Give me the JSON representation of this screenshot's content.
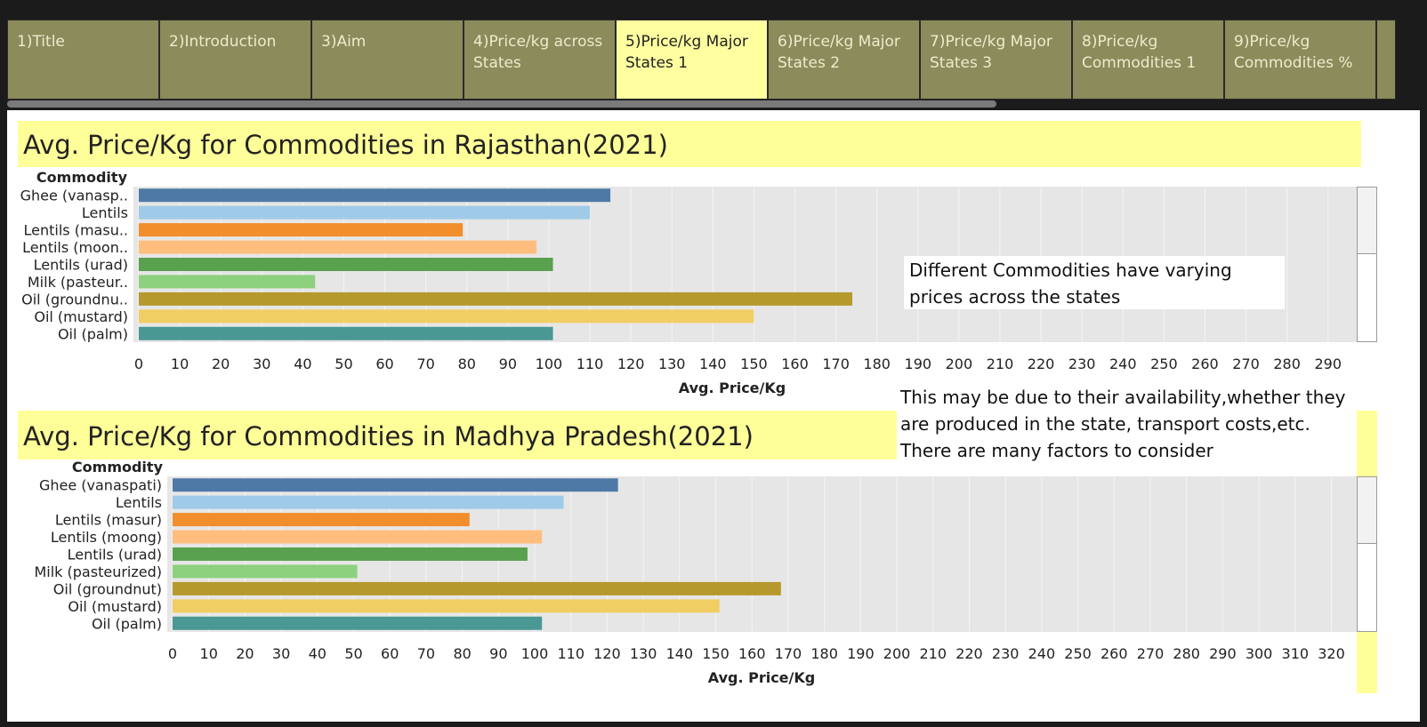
{
  "tabs": [
    {
      "label": "1)Title"
    },
    {
      "label": "2)Introduction"
    },
    {
      "label": "3)Aim"
    },
    {
      "label": "4)Price/kg across States"
    },
    {
      "label": "5)Price/kg Major States 1"
    },
    {
      "label": "6)Price/kg Major States 2"
    },
    {
      "label": "7)Price/kg Major States 3"
    },
    {
      "label": "8)Price/kg Commodities 1"
    },
    {
      "label": "9)Price/kg Commodities %"
    }
  ],
  "active_tab_index": 4,
  "notes": {
    "note1": "Different Commodities have varying prices across the states",
    "note2": "This may be due to their availability,whether they are produced in the state, transport costs,etc. There are many factors to consider"
  },
  "colors": {
    "tab_bg": "#8b8b5c",
    "tab_active_bg": "#ffffa0",
    "title_bg": "#ffff99",
    "plot_bg": "#e6e6e6"
  },
  "chart_data": [
    {
      "type": "bar",
      "orientation": "horizontal",
      "title": "Avg. Price/Kg for Commodities in Rajasthan(2021)",
      "category_header": "Commodity",
      "xlabel": "Avg. Price/Kg",
      "xlim": [
        0,
        297
      ],
      "xticks": [
        0,
        10,
        20,
        30,
        40,
        50,
        60,
        70,
        80,
        90,
        100,
        110,
        120,
        130,
        140,
        150,
        160,
        170,
        180,
        190,
        200,
        210,
        220,
        230,
        240,
        250,
        260,
        270,
        280,
        290
      ],
      "categories": [
        "Ghee (vanasp..",
        "Lentils",
        "Lentils (masu..",
        "Lentils (moon..",
        "Lentils (urad)",
        "Milk (pasteur..",
        "Oil (groundnu..",
        "Oil (mustard)",
        "Oil (palm)"
      ],
      "values": [
        115,
        110,
        79,
        97,
        101,
        43,
        174,
        150,
        101
      ],
      "colors": [
        "#4e79a7",
        "#a0cbe8",
        "#f28e2b",
        "#ffbe7d",
        "#59a14f",
        "#8cd17d",
        "#b6992d",
        "#f1ce63",
        "#499894"
      ],
      "grid": true
    },
    {
      "type": "bar",
      "orientation": "horizontal",
      "title": "Avg. Price/Kg for Commodities in Madhya Pradesh(2021)",
      "category_header": "Commodity",
      "xlabel": "Avg. Price/Kg",
      "xlim": [
        0,
        327
      ],
      "xticks": [
        0,
        10,
        20,
        30,
        40,
        50,
        60,
        70,
        80,
        90,
        100,
        110,
        120,
        130,
        140,
        150,
        160,
        170,
        180,
        190,
        200,
        210,
        220,
        230,
        240,
        250,
        260,
        270,
        280,
        290,
        300,
        310,
        320
      ],
      "categories": [
        "Ghee (vanaspati)",
        "Lentils",
        "Lentils (masur)",
        "Lentils (moong)",
        "Lentils (urad)",
        "Milk (pasteurized)",
        "Oil (groundnut)",
        "Oil (mustard)",
        "Oil (palm)"
      ],
      "values": [
        123,
        108,
        82,
        102,
        98,
        51,
        168,
        151,
        102
      ],
      "colors": [
        "#4e79a7",
        "#a0cbe8",
        "#f28e2b",
        "#ffbe7d",
        "#59a14f",
        "#8cd17d",
        "#b6992d",
        "#f1ce63",
        "#499894"
      ],
      "grid": true
    }
  ]
}
